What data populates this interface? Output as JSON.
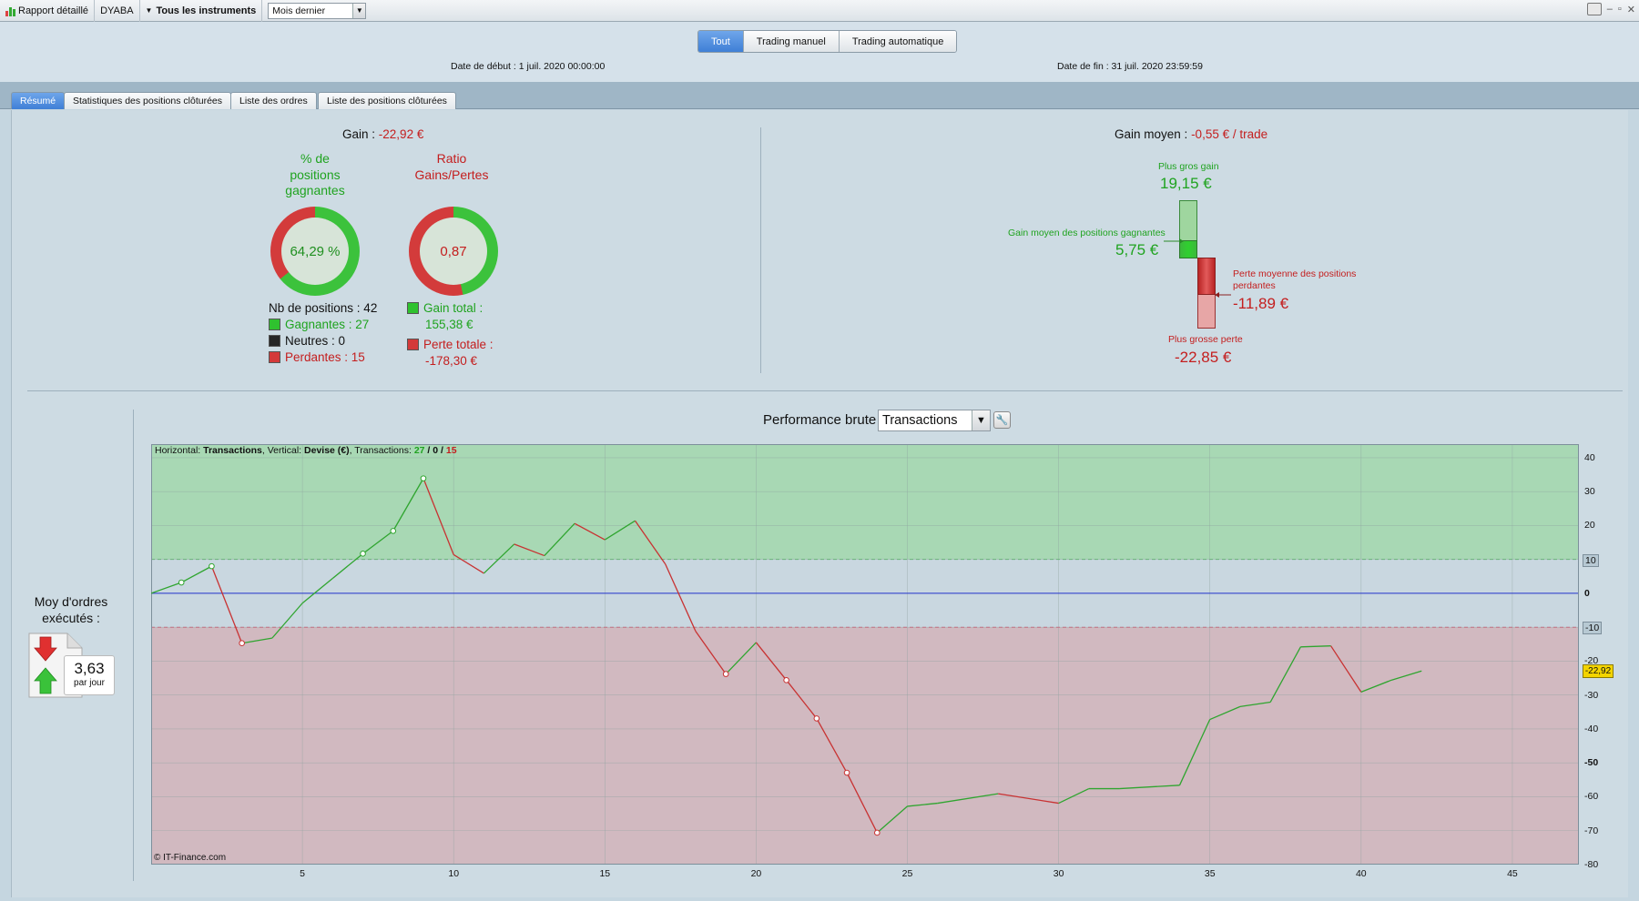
{
  "topbar": {
    "report_label": "Rapport détaillé",
    "account": "DYABA",
    "instruments": "Tous les instruments",
    "period": "Mois dernier"
  },
  "modes": [
    "Tout",
    "Trading manuel",
    "Trading automatique"
  ],
  "dates": {
    "start_label": "Date de début :",
    "start_value": "1 juil. 2020 00:00:00",
    "end_label": "Date de fin :",
    "end_value": "31 juil. 2020 23:59:59"
  },
  "tabs": [
    "Résumé",
    "Statistiques des positions clôturées",
    "Liste des ordres",
    "Liste des positions clôturées"
  ],
  "summary": {
    "gain_label": "Gain :",
    "gain_value": "-22,92 €",
    "pct_title_1": "% de",
    "pct_title_2": "positions",
    "pct_title_3": "gagnantes",
    "pct_value": "64,29 %",
    "pct_fraction": 0.6429,
    "ratio_title_1": "Ratio",
    "ratio_title_2": "Gains/Pertes",
    "ratio_value": "0,87",
    "ratio_fraction": 0.4657,
    "positions_label": "Nb de positions : 42",
    "winners": "Gagnantes : 27",
    "neutral": "Neutres : 0",
    "losers": "Perdantes : 15",
    "total_gain_label": "Gain total :",
    "total_gain_value": "155,38 €",
    "total_loss_label": "Perte totale :",
    "total_loss_value": "-178,30 €"
  },
  "avg": {
    "title_label": "Gain moyen :",
    "title_value": "-0,55 € / trade",
    "biggest_gain_label": "Plus gros gain",
    "biggest_gain_value": "19,15 €",
    "avg_win_label": "Gain moyen des positions gagnantes",
    "avg_win_value": "5,75 €",
    "avg_loss_label_1": "Perte moyenne des positions",
    "avg_loss_label_2": "perdantes",
    "avg_loss_value": "-11,89 €",
    "biggest_loss_label": "Plus grosse perte",
    "biggest_loss_value": "-22,85 €"
  },
  "orders": {
    "label_1": "Moy d'ordres",
    "label_2": "exécutés :",
    "value": "3,63",
    "unit": "par jour"
  },
  "perf": {
    "title": "Performance brute",
    "select": "Transactions",
    "info_h_label": "Horizontal:",
    "info_h": "Transactions",
    "info_v_label": ", Vertical:",
    "info_v": "Devise (€)",
    "info_t_label": ", Transactions:",
    "info_win": "27",
    "info_sep": " / ",
    "info_neutral": "0",
    "info_loss": "15",
    "copyright": "© IT-Finance.com",
    "last_value": "-22,92"
  },
  "chart_data": {
    "type": "line",
    "xlabel": "Transactions",
    "ylabel": "Devise (€)",
    "xlim": [
      0,
      47.2
    ],
    "ylim": [
      -80,
      44
    ],
    "upper_band": 10,
    "lower_band": -10,
    "zero_line": 0,
    "x_ticks": [
      5,
      10,
      15,
      20,
      25,
      30,
      35,
      40,
      45
    ],
    "y_ticks": [
      {
        "v": 40,
        "label": "40"
      },
      {
        "v": 30,
        "label": "30"
      },
      {
        "v": 20,
        "label": "20"
      },
      {
        "v": 10,
        "label": "10"
      },
      {
        "v": 0,
        "label": "0"
      },
      {
        "v": -10,
        "label": "-10"
      },
      {
        "v": -20,
        "label": "-20"
      },
      {
        "v": -30,
        "label": "-30"
      },
      {
        "v": -40,
        "label": "-40"
      },
      {
        "v": -50,
        "label": "-50"
      },
      {
        "v": -60,
        "label": "-60"
      },
      {
        "v": -70,
        "label": "-70"
      },
      {
        "v": -80,
        "label": "-80"
      }
    ],
    "points": [
      {
        "x": 0,
        "y": 0
      },
      {
        "x": 1,
        "y": 3.2
      },
      {
        "x": 2,
        "y": 8
      },
      {
        "x": 3,
        "y": -14.7
      },
      {
        "x": 4,
        "y": -13.2
      },
      {
        "x": 5,
        "y": -2.9
      },
      {
        "x": 6,
        "y": 4.4
      },
      {
        "x": 7,
        "y": 11.7
      },
      {
        "x": 8,
        "y": 18.4
      },
      {
        "x": 9,
        "y": 33.9
      },
      {
        "x": 10,
        "y": 11.4
      },
      {
        "x": 11,
        "y": 5.9
      },
      {
        "x": 12,
        "y": 14.5
      },
      {
        "x": 13,
        "y": 11.1
      },
      {
        "x": 14,
        "y": 20.6
      },
      {
        "x": 15,
        "y": 15.8
      },
      {
        "x": 16,
        "y": 21.4
      },
      {
        "x": 17,
        "y": 8.6
      },
      {
        "x": 18,
        "y": -11.2
      },
      {
        "x": 19,
        "y": -23.8
      },
      {
        "x": 20,
        "y": -14.5
      },
      {
        "x": 21,
        "y": -25.6
      },
      {
        "x": 22,
        "y": -36.9
      },
      {
        "x": 23,
        "y": -52.9
      },
      {
        "x": 24,
        "y": -70.6
      },
      {
        "x": 25,
        "y": -62.8
      },
      {
        "x": 26,
        "y": -61.9
      },
      {
        "x": 28,
        "y": -59.1
      },
      {
        "x": 30,
        "y": -61.9
      },
      {
        "x": 31,
        "y": -57.6
      },
      {
        "x": 32,
        "y": -57.6
      },
      {
        "x": 34,
        "y": -56.6
      },
      {
        "x": 35,
        "y": -37.2
      },
      {
        "x": 36,
        "y": -33.4
      },
      {
        "x": 37,
        "y": -32.1
      },
      {
        "x": 38,
        "y": -15.8
      },
      {
        "x": 39,
        "y": -15.5
      },
      {
        "x": 40,
        "y": -29.1
      },
      {
        "x": 41,
        "y": -25.6
      },
      {
        "x": 42,
        "y": -22.9
      }
    ],
    "markers": [
      1,
      2,
      3,
      7,
      8,
      9,
      19,
      21,
      22,
      23,
      24
    ],
    "colors": {
      "win": "#2fa52f",
      "loss": "#c83232",
      "zero": "#2233cc",
      "upper_fill": "#a8d8b4",
      "lower_fill": "#d1b9c0"
    }
  }
}
